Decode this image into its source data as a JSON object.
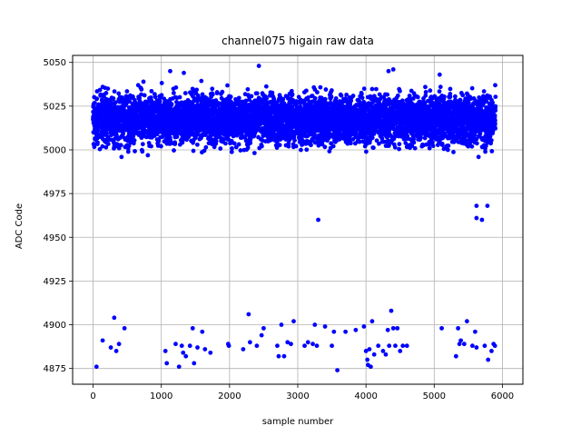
{
  "chart_data": {
    "type": "scatter",
    "title": "channel075 higain raw data",
    "xlabel": "sample number",
    "ylabel": "ADC Code",
    "xlim": [
      -300,
      6300
    ],
    "ylim": [
      4866,
      5054
    ],
    "xticks": [
      0,
      1000,
      2000,
      3000,
      4000,
      5000,
      6000
    ],
    "yticks": [
      4875,
      4900,
      4925,
      4950,
      4975,
      5000,
      5025,
      5050
    ],
    "grid": true,
    "marker_color": "#0000ff",
    "series": [
      {
        "main_band": {
          "x_range": [
            0,
            5900
          ],
          "dense_range": [
            5000,
            5035
          ],
          "typical_range": [
            4994,
            5044
          ],
          "n_points": 5900
        },
        "notable_high_points": [
          {
            "x": 1130,
            "y": 5045
          },
          {
            "x": 1330,
            "y": 5044
          },
          {
            "x": 2430,
            "y": 5048
          },
          {
            "x": 4330,
            "y": 5045
          },
          {
            "x": 4400,
            "y": 5046
          },
          {
            "x": 5080,
            "y": 5043
          }
        ],
        "mid_outliers": [
          {
            "x": 3300,
            "y": 4960
          },
          {
            "x": 5620,
            "y": 4968
          },
          {
            "x": 5620,
            "y": 4961
          },
          {
            "x": 5700,
            "y": 4960
          },
          {
            "x": 5780,
            "y": 4968
          }
        ],
        "low_outliers": [
          {
            "x": 50,
            "y": 4876
          },
          {
            "x": 140,
            "y": 4891
          },
          {
            "x": 260,
            "y": 4887
          },
          {
            "x": 310,
            "y": 4904
          },
          {
            "x": 340,
            "y": 4885
          },
          {
            "x": 380,
            "y": 4889
          },
          {
            "x": 460,
            "y": 4898
          },
          {
            "x": 1060,
            "y": 4885
          },
          {
            "x": 1080,
            "y": 4878
          },
          {
            "x": 1210,
            "y": 4889
          },
          {
            "x": 1260,
            "y": 4876
          },
          {
            "x": 1300,
            "y": 4888
          },
          {
            "x": 1320,
            "y": 4884
          },
          {
            "x": 1360,
            "y": 4882
          },
          {
            "x": 1420,
            "y": 4888
          },
          {
            "x": 1460,
            "y": 4898
          },
          {
            "x": 1480,
            "y": 4878
          },
          {
            "x": 1530,
            "y": 4887
          },
          {
            "x": 1600,
            "y": 4896
          },
          {
            "x": 1640,
            "y": 4886
          },
          {
            "x": 1720,
            "y": 4884
          },
          {
            "x": 1980,
            "y": 4889
          },
          {
            "x": 1990,
            "y": 4888
          },
          {
            "x": 2200,
            "y": 4886
          },
          {
            "x": 2280,
            "y": 4906
          },
          {
            "x": 2300,
            "y": 4890
          },
          {
            "x": 2400,
            "y": 4888
          },
          {
            "x": 2470,
            "y": 4894
          },
          {
            "x": 2500,
            "y": 4898
          },
          {
            "x": 2700,
            "y": 4888
          },
          {
            "x": 2720,
            "y": 4882
          },
          {
            "x": 2760,
            "y": 4900
          },
          {
            "x": 2800,
            "y": 4882
          },
          {
            "x": 2850,
            "y": 4890
          },
          {
            "x": 2900,
            "y": 4889
          },
          {
            "x": 2940,
            "y": 4902
          },
          {
            "x": 3100,
            "y": 4888
          },
          {
            "x": 3150,
            "y": 4890
          },
          {
            "x": 3220,
            "y": 4889
          },
          {
            "x": 3250,
            "y": 4900
          },
          {
            "x": 3280,
            "y": 4888
          },
          {
            "x": 3400,
            "y": 4899
          },
          {
            "x": 3500,
            "y": 4888
          },
          {
            "x": 3530,
            "y": 4896
          },
          {
            "x": 3580,
            "y": 4874
          },
          {
            "x": 3700,
            "y": 4896
          },
          {
            "x": 3850,
            "y": 4897
          },
          {
            "x": 3970,
            "y": 4899
          },
          {
            "x": 4000,
            "y": 4885
          },
          {
            "x": 4020,
            "y": 4880
          },
          {
            "x": 4030,
            "y": 4877
          },
          {
            "x": 4050,
            "y": 4886
          },
          {
            "x": 4070,
            "y": 4876
          },
          {
            "x": 4090,
            "y": 4902
          },
          {
            "x": 4120,
            "y": 4883
          },
          {
            "x": 4180,
            "y": 4888
          },
          {
            "x": 4250,
            "y": 4885
          },
          {
            "x": 4290,
            "y": 4883
          },
          {
            "x": 4320,
            "y": 4897
          },
          {
            "x": 4340,
            "y": 4888
          },
          {
            "x": 4370,
            "y": 4908
          },
          {
            "x": 4400,
            "y": 4898
          },
          {
            "x": 4430,
            "y": 4888
          },
          {
            "x": 4460,
            "y": 4898
          },
          {
            "x": 4500,
            "y": 4885
          },
          {
            "x": 4540,
            "y": 4888
          },
          {
            "x": 4600,
            "y": 4888
          },
          {
            "x": 5110,
            "y": 4898
          },
          {
            "x": 5320,
            "y": 4882
          },
          {
            "x": 5350,
            "y": 4898
          },
          {
            "x": 5370,
            "y": 4889
          },
          {
            "x": 5390,
            "y": 4891
          },
          {
            "x": 5440,
            "y": 4889
          },
          {
            "x": 5480,
            "y": 4902
          },
          {
            "x": 5560,
            "y": 4888
          },
          {
            "x": 5600,
            "y": 4896
          },
          {
            "x": 5620,
            "y": 4887
          },
          {
            "x": 5740,
            "y": 4888
          },
          {
            "x": 5790,
            "y": 4880
          },
          {
            "x": 5840,
            "y": 4885
          },
          {
            "x": 5870,
            "y": 4889
          },
          {
            "x": 5890,
            "y": 4888
          }
        ]
      }
    ]
  }
}
